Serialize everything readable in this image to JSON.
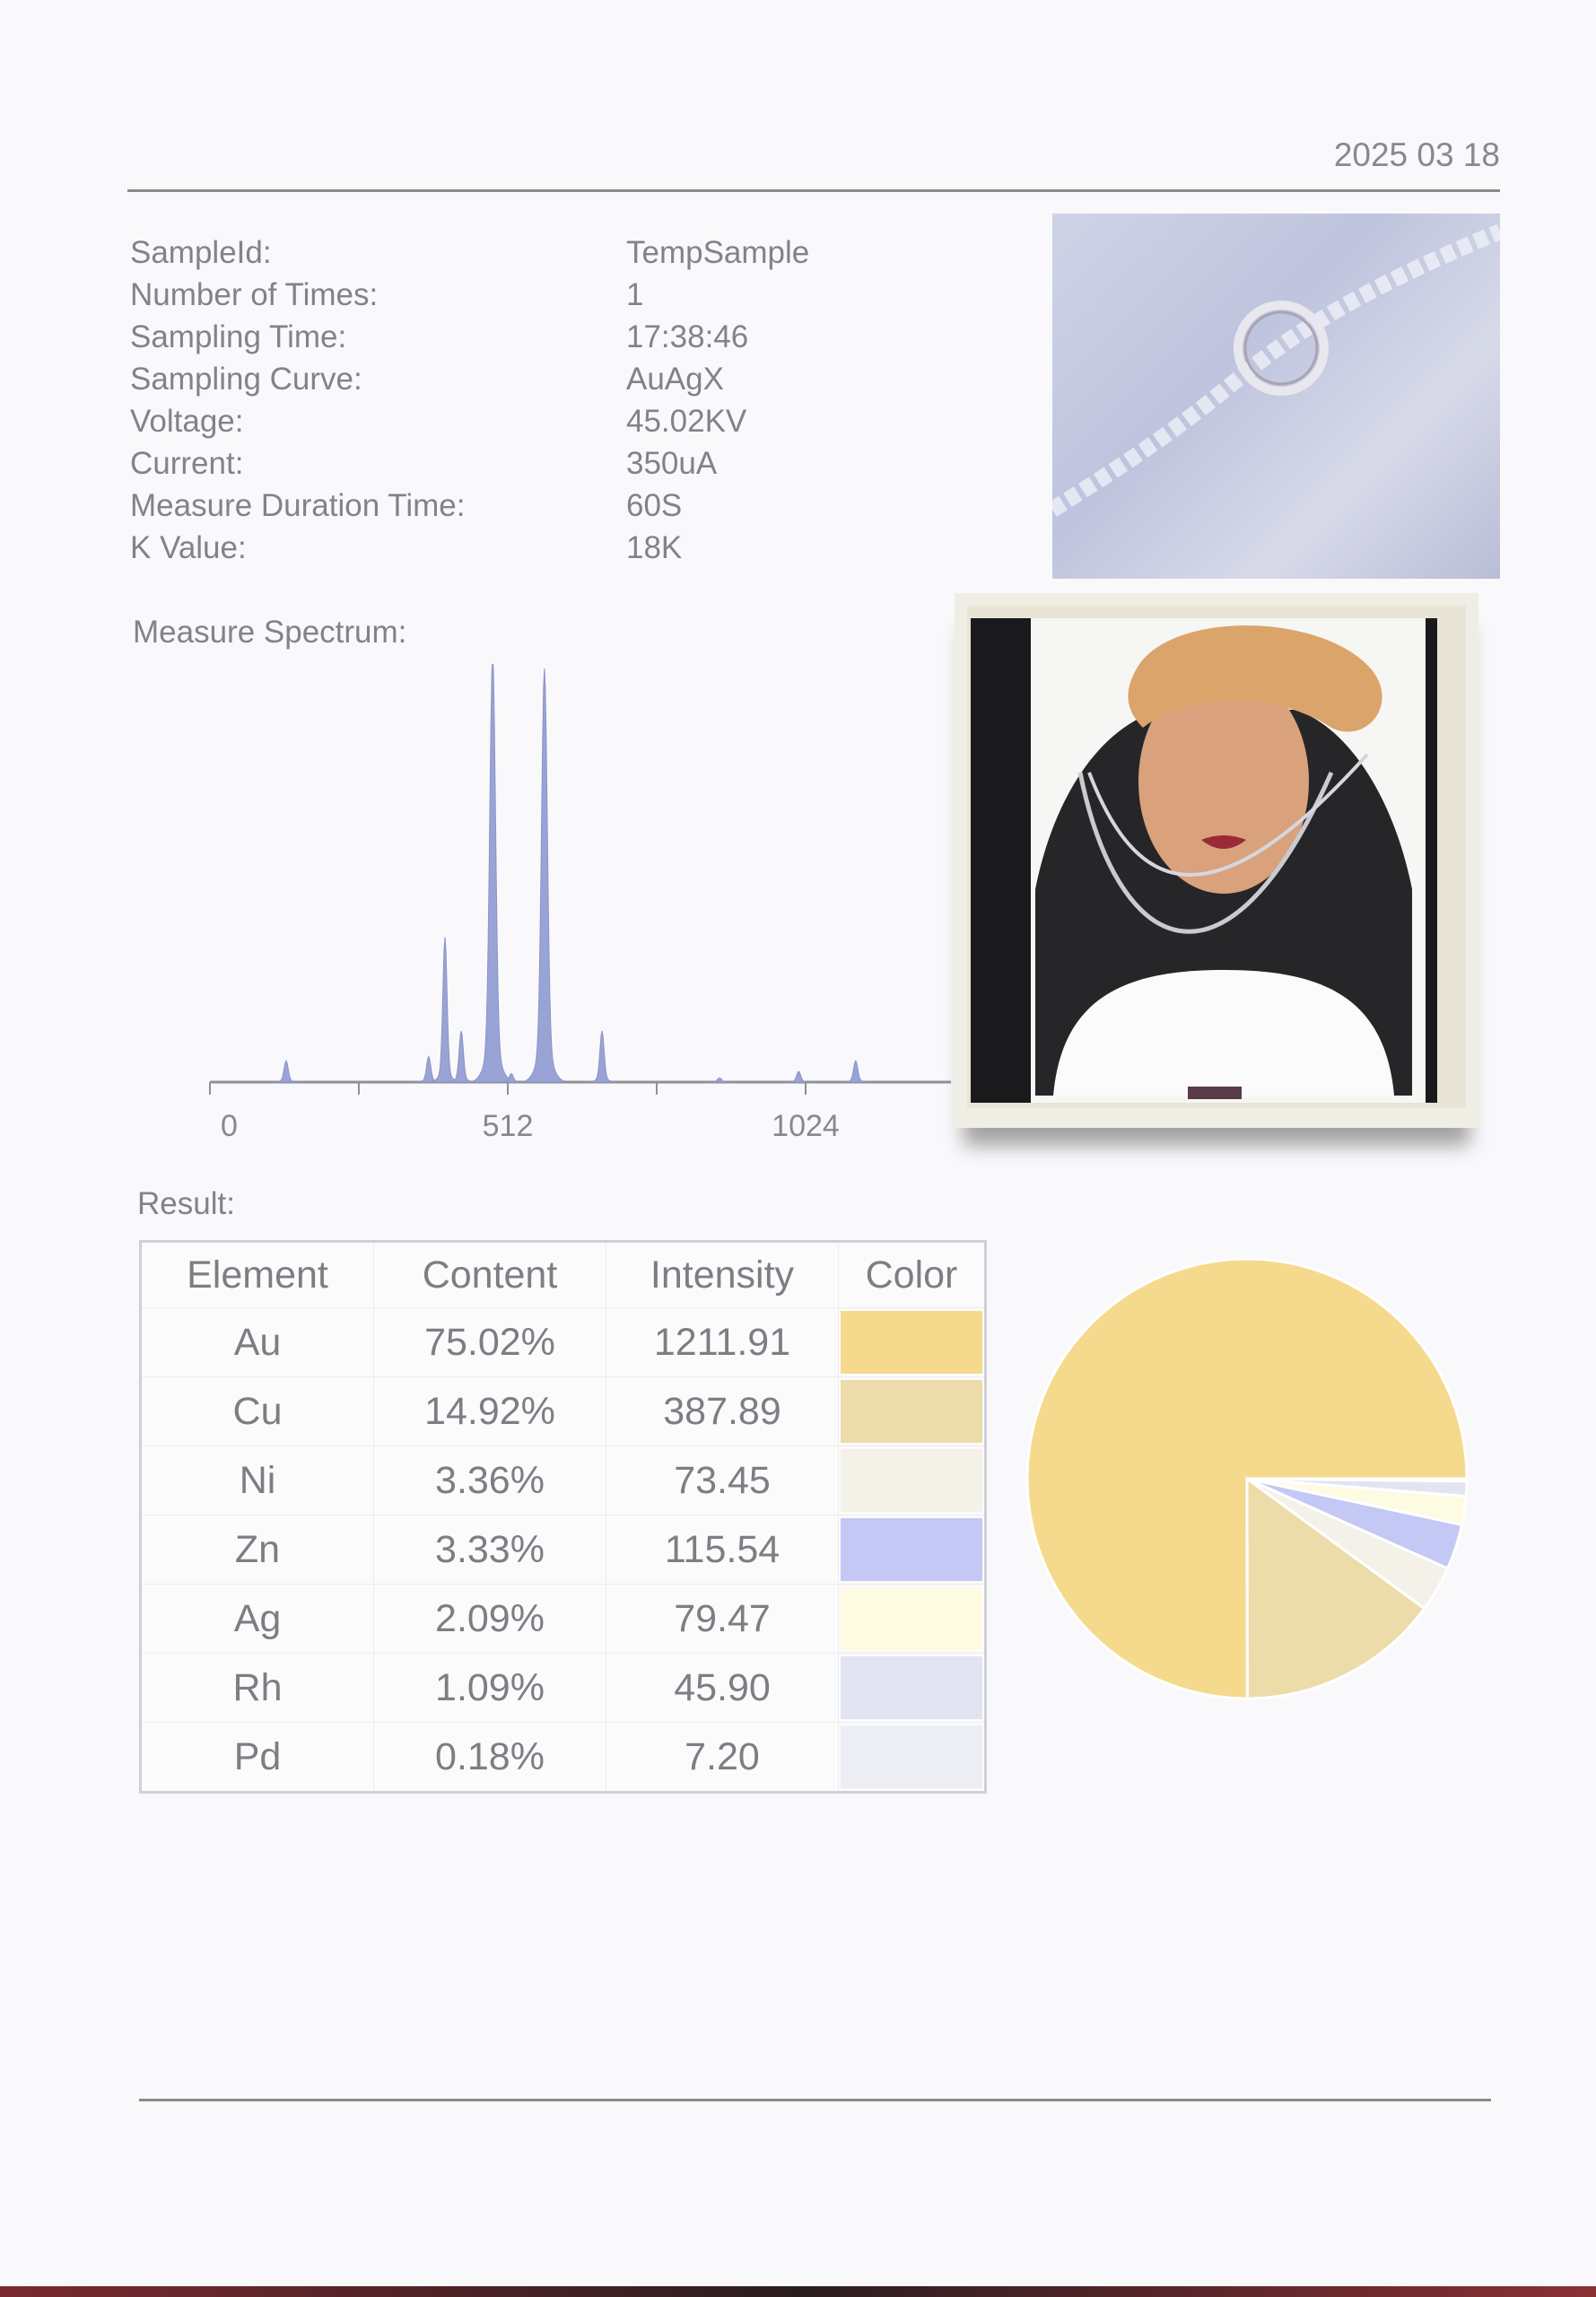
{
  "header": {
    "date": "2025 03 18"
  },
  "info": [
    {
      "label": "SampleId:",
      "value": "TempSample"
    },
    {
      "label": "Number of Times:",
      "value": "1"
    },
    {
      "label": "Sampling Time:",
      "value": "17:38:46"
    },
    {
      "label": "Sampling Curve:",
      "value": "AuAgX"
    },
    {
      "label": "Voltage:",
      "value": "45.02KV"
    },
    {
      "label": "Current:",
      "value": "350uA"
    },
    {
      "label": "Measure Duration Time:",
      "value": "60S"
    },
    {
      "label": "K Value:",
      "value": "18K"
    }
  ],
  "spectrum_label": "Measure Spectrum:",
  "result_label": "Result:",
  "chart_data": [
    {
      "type": "area",
      "xticks": [
        "0",
        "512",
        "1024"
      ],
      "xlim": [
        0,
        1280
      ],
      "color": "#9aa3d6",
      "peaks": [
        {
          "channel": 131,
          "relative_intensity": 0.05
        },
        {
          "channel": 376,
          "relative_intensity": 0.06
        },
        {
          "channel": 404,
          "relative_intensity": 0.34
        },
        {
          "channel": 432,
          "relative_intensity": 0.12
        },
        {
          "channel": 486,
          "relative_intensity": 1.0
        },
        {
          "channel": 518,
          "relative_intensity": 0.02
        },
        {
          "channel": 575,
          "relative_intensity": 0.97
        },
        {
          "channel": 674,
          "relative_intensity": 0.12
        },
        {
          "channel": 876,
          "relative_intensity": 0.01
        },
        {
          "channel": 1012,
          "relative_intensity": 0.025
        },
        {
          "channel": 1110,
          "relative_intensity": 0.05
        }
      ]
    },
    {
      "type": "pie",
      "direction": "counterclockwise from 3 o'clock",
      "categories": [
        "Au",
        "Cu",
        "Ni",
        "Zn",
        "Ag",
        "Rh",
        "Pd"
      ],
      "values": [
        75.02,
        14.92,
        3.36,
        3.33,
        2.09,
        1.09,
        0.18
      ]
    }
  ],
  "table": {
    "headers": [
      "Element",
      "Content",
      "Intensity",
      "Color"
    ],
    "rows": [
      {
        "element": "Au",
        "content": "75.02%",
        "intensity": "1211.91",
        "color": "#f5da8e"
      },
      {
        "element": "Cu",
        "content": "14.92%",
        "intensity": "387.89",
        "color": "#ecdcaa"
      },
      {
        "element": "Ni",
        "content": "3.36%",
        "intensity": "73.45",
        "color": "#f3f1e8"
      },
      {
        "element": "Zn",
        "content": "3.33%",
        "intensity": "115.54",
        "color": "#c4c8f5"
      },
      {
        "element": "Ag",
        "content": "2.09%",
        "intensity": "79.47",
        "color": "#fdfbe2"
      },
      {
        "element": "Rh",
        "content": "1.09%",
        "intensity": "45.90",
        "color": "#e2e5f1"
      },
      {
        "element": "Pd",
        "content": "0.18%",
        "intensity": "7.20",
        "color": "#eceef3"
      }
    ]
  }
}
